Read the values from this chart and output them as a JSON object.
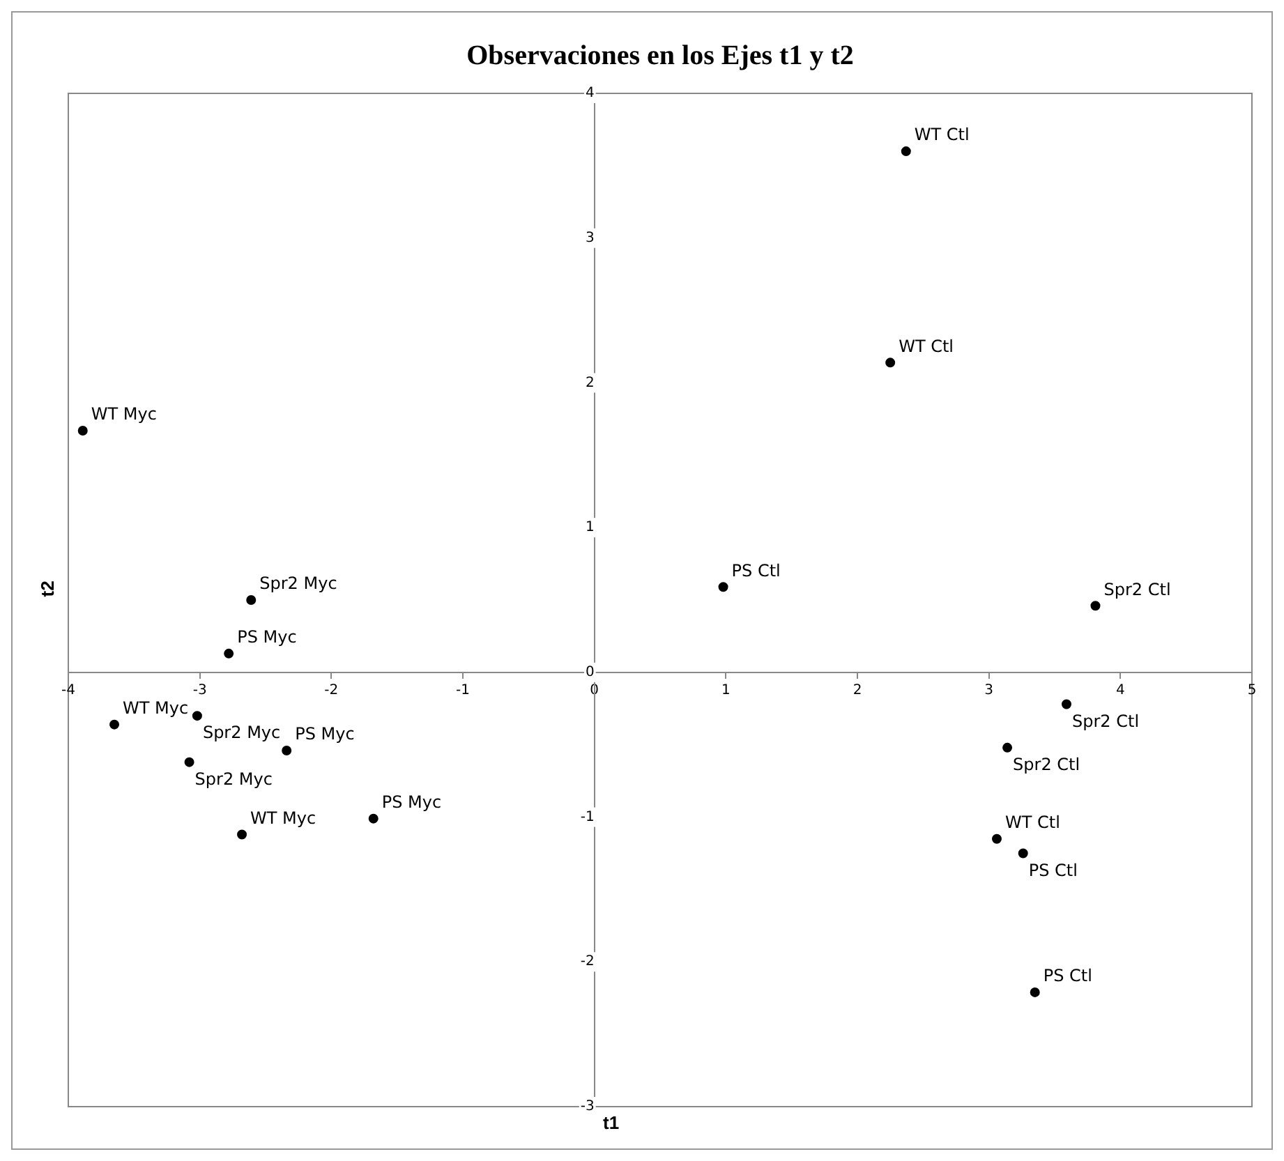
{
  "chart_data": {
    "type": "scatter",
    "title": "Observaciones en los Ejes t1 y t2",
    "xlabel": "t1",
    "ylabel": "t2",
    "x": [
      2.37,
      2.25,
      -3.89,
      0.98,
      3.81,
      -2.61,
      -2.78,
      -3.65,
      -3.02,
      -3.08,
      -2.34,
      -1.68,
      -2.68,
      3.59,
      3.14,
      3.06,
      3.26,
      3.35
    ],
    "series": [
      {
        "color": "#000000",
        "values": [
          3.6,
          2.14,
          1.67,
          0.59,
          0.46,
          0.5,
          0.13,
          -0.36,
          -0.3,
          -0.62,
          -0.54,
          -1.01,
          -1.12,
          -0.22,
          -0.52,
          -1.15,
          -1.25,
          -2.21
        ]
      }
    ],
    "annotations": [
      {
        "text": "WT Ctl",
        "x": 2.37,
        "y": 3.6
      },
      {
        "text": "WT Ctl",
        "x": 2.25,
        "y": 2.14
      },
      {
        "text": "WT Myc",
        "x": -3.89,
        "y": 1.67
      },
      {
        "text": "PS Ctl",
        "x": 0.98,
        "y": 0.59
      },
      {
        "text": "Spr2 Ctl",
        "x": 3.81,
        "y": 0.46
      },
      {
        "text": "Spr2 Myc",
        "x": -2.61,
        "y": 0.5
      },
      {
        "text": "PS Myc",
        "x": -2.78,
        "y": 0.13
      },
      {
        "text": "WT Myc",
        "x": -3.65,
        "y": -0.36
      },
      {
        "text": "Spr2 Myc",
        "x": -3.02,
        "y": -0.3
      },
      {
        "text": "Spr2 Myc",
        "x": -3.08,
        "y": -0.62
      },
      {
        "text": "PS Myc",
        "x": -2.34,
        "y": -0.54
      },
      {
        "text": "PS Myc",
        "x": -1.68,
        "y": -1.01
      },
      {
        "text": "WT Myc",
        "x": -2.68,
        "y": -1.12
      },
      {
        "text": "Spr2 Ctl",
        "x": 3.59,
        "y": -0.22
      },
      {
        "text": "Spr2 Ctl",
        "x": 3.14,
        "y": -0.52
      },
      {
        "text": "WT Ctl",
        "x": 3.06,
        "y": -1.15
      },
      {
        "text": "PS Ctl",
        "x": 3.26,
        "y": -1.25
      },
      {
        "text": "PS Ctl",
        "x": 3.35,
        "y": -2.21
      }
    ],
    "xlim": [
      -4,
      5
    ],
    "xticks": [
      -4,
      -3,
      -2,
      -1,
      0,
      1,
      2,
      3,
      4,
      5
    ],
    "ylim": [
      -3,
      4
    ],
    "yticks": [
      -3,
      -2,
      -1,
      0,
      1,
      2,
      3,
      4
    ],
    "marker": "circle",
    "grid": false,
    "legend": false
  }
}
